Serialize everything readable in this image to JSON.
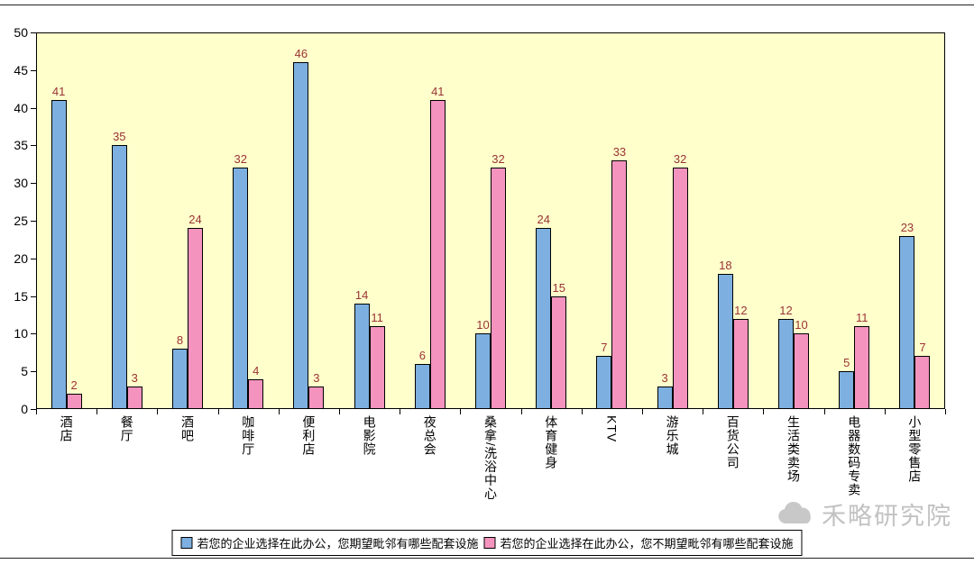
{
  "legend": {
    "items": [
      {
        "label": "若您的企业选择在此办公，您期望毗邻有哪些配套设施",
        "color": "#7DB0E0"
      },
      {
        "label": "若您的企业选择在此办公，您不期望毗邻有哪些配套设施",
        "color": "#F493BE"
      }
    ]
  },
  "watermark": {
    "text": "禾略研究院"
  },
  "chart_data": {
    "type": "bar",
    "title": "",
    "xlabel": "",
    "ylabel": "",
    "categories": [
      "酒店",
      "餐厅",
      "酒吧",
      "咖啡厅",
      "便利店",
      "电影院",
      "夜总会",
      "桑拿/洗浴中心",
      "体育健身",
      "KTV",
      "游乐城",
      "百货公司",
      "生活类卖场",
      "电器数码专卖",
      "小型零售店"
    ],
    "series": [
      {
        "name": "若您的企业选择在此办公，您期望毗邻有哪些配套设施",
        "color": "#7DB0E0",
        "values": [
          41,
          35,
          8,
          32,
          46,
          14,
          6,
          10,
          24,
          7,
          3,
          18,
          12,
          5,
          23
        ]
      },
      {
        "name": "若您的企业选择在此办公，您不期望毗邻有哪些配套设施",
        "color": "#F493BE",
        "values": [
          2,
          3,
          24,
          4,
          3,
          11,
          41,
          32,
          15,
          33,
          32,
          12,
          10,
          11,
          7
        ]
      }
    ],
    "ylim": [
      0,
      50
    ],
    "yticks": [
      0,
      5,
      10,
      15,
      20,
      25,
      30,
      35,
      40,
      45,
      50
    ],
    "grid": false,
    "legend_position": "bottom",
    "plot_background": "#FFFFCC",
    "data_label_color": "#993333",
    "axis_color": "#000000"
  }
}
